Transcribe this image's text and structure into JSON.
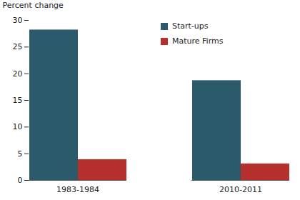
{
  "chart_data": {
    "type": "bar",
    "ylabel": "Percent change",
    "categories": [
      "1983-1984",
      "2010-2011"
    ],
    "series": [
      {
        "name": "Start-ups",
        "color": "#2b5a6a",
        "values": [
          28.2,
          18.7
        ]
      },
      {
        "name": "Mature Firms",
        "color": "#b5302c",
        "values": [
          3.9,
          3.1
        ]
      }
    ],
    "ylim": [
      0,
      30
    ],
    "yticks": [
      0,
      5,
      10,
      15,
      20,
      25,
      30
    ],
    "legend": "upper right",
    "grid": false
  }
}
